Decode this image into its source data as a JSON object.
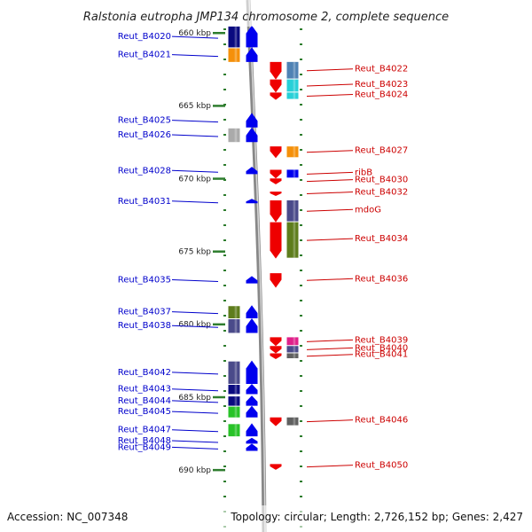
{
  "title": "Ralstonia eutropha JMP134 chromosome 2, complete sequence",
  "accession": "Accession: NC_007348",
  "topology": "Topology: circular; Length: 2,726,152 bp; Genes: 2,427",
  "colors": {
    "left_label": "#0000cc",
    "right_label": "#cc0000",
    "blue": "#0000ee",
    "red": "#ee0000",
    "navy": "#0a0a80",
    "orange": "#f5900a",
    "grey": "#aaaaaa",
    "slate": "#4a4a8a",
    "olive": "#5e7d1c",
    "green": "#28c328",
    "steel": "#4f82b4",
    "cyan": "#27d0d8",
    "magenta": "#e0208a",
    "darkgrey": "#606060",
    "tick": "#2e7d2e",
    "axis": "#888888"
  },
  "chart_data": {
    "type": "genome-map",
    "kbp_ticks": [
      {
        "kbp": 660,
        "label": "660 kbp"
      },
      {
        "kbp": 665,
        "label": "665 kbp"
      },
      {
        "kbp": 670,
        "label": "670 kbp"
      },
      {
        "kbp": 675,
        "label": "675 kbp"
      },
      {
        "kbp": 680,
        "label": "680 kbp"
      },
      {
        "kbp": 685,
        "label": "685 kbp"
      },
      {
        "kbp": 690,
        "label": "690 kbp"
      }
    ],
    "left_genes": [
      {
        "name": "Reut_B4020",
        "start": 659.5,
        "end": 661.0
      },
      {
        "name": "Reut_B4021",
        "start": 661.0,
        "end": 662.0
      },
      {
        "name": "Reut_B4025",
        "start": 665.5,
        "end": 666.5
      },
      {
        "name": "Reut_B4026",
        "start": 666.5,
        "end": 667.5
      },
      {
        "name": "Reut_B4028",
        "start": 669.2,
        "end": 669.7
      },
      {
        "name": "Reut_B4031",
        "start": 671.4,
        "end": 671.7
      },
      {
        "name": "Reut_B4035",
        "start": 676.7,
        "end": 677.2
      },
      {
        "name": "Reut_B4037",
        "start": 678.7,
        "end": 679.6
      },
      {
        "name": "Reut_B4038",
        "start": 679.6,
        "end": 680.6
      },
      {
        "name": "Reut_B4042",
        "start": 682.5,
        "end": 684.1
      },
      {
        "name": "Reut_B4043",
        "start": 684.1,
        "end": 684.8
      },
      {
        "name": "Reut_B4044",
        "start": 684.9,
        "end": 685.6
      },
      {
        "name": "Reut_B4045",
        "start": 685.6,
        "end": 686.4
      },
      {
        "name": "Reut_B4047",
        "start": 686.8,
        "end": 687.7
      },
      {
        "name": "Reut_B4048",
        "start": 687.8,
        "end": 688.2
      },
      {
        "name": "Reut_B4049",
        "start": 688.2,
        "end": 688.7
      }
    ],
    "right_genes": [
      {
        "name": "Reut_B4022",
        "start": 662.0,
        "end": 663.2
      },
      {
        "name": "Reut_B4023",
        "start": 663.2,
        "end": 664.1
      },
      {
        "name": "Reut_B4024",
        "start": 664.1,
        "end": 664.6
      },
      {
        "name": "Reut_B4027",
        "start": 667.8,
        "end": 668.6
      },
      {
        "name": "ribB",
        "start": 669.4,
        "end": 670.0
      },
      {
        "name": "Reut_B4030",
        "start": 670.0,
        "end": 670.4
      },
      {
        "name": "Reut_B4032",
        "start": 670.9,
        "end": 671.2
      },
      {
        "name": "mdoG",
        "start": 671.5,
        "end": 673.0
      },
      {
        "name": "Reut_B4034",
        "start": 673.0,
        "end": 675.5
      },
      {
        "name": "Reut_B4036",
        "start": 676.5,
        "end": 677.5
      },
      {
        "name": "Reut_B4039",
        "start": 680.9,
        "end": 681.5
      },
      {
        "name": "Reut_B4040",
        "start": 681.5,
        "end": 682.0
      },
      {
        "name": "Reut_B4041",
        "start": 682.0,
        "end": 682.4
      },
      {
        "name": "Reut_B4046",
        "start": 686.4,
        "end": 687.0
      },
      {
        "name": "Reut_B4050",
        "start": 689.6,
        "end": 690.0
      }
    ]
  }
}
